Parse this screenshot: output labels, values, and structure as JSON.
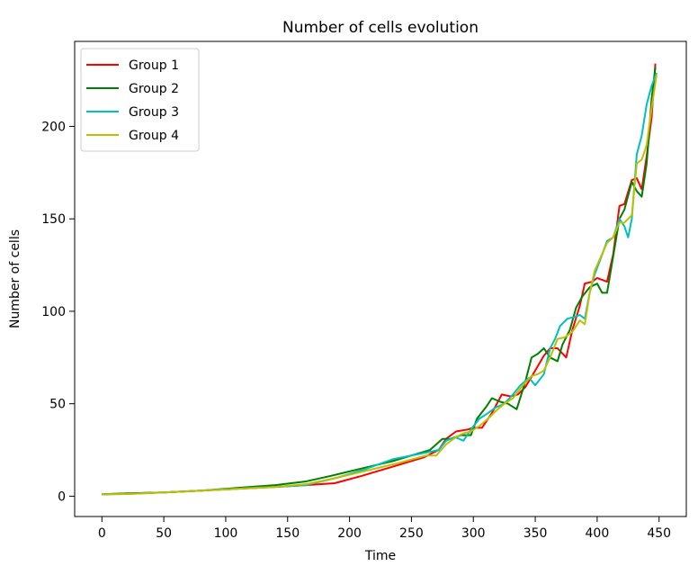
{
  "chart_data": {
    "type": "line",
    "title": "Number of cells evolution",
    "xlabel": "Time",
    "ylabel": "Number of cells",
    "xlim": [
      -22,
      472
    ],
    "ylim": [
      -11,
      246
    ],
    "xticks": [
      0,
      50,
      100,
      150,
      200,
      250,
      300,
      350,
      400,
      450
    ],
    "xtick_labels": [
      "0",
      "50",
      "100",
      "150",
      "200",
      "250",
      "300",
      "350",
      "400",
      "450"
    ],
    "yticks": [
      0,
      50,
      100,
      150,
      200
    ],
    "ytick_labels": [
      "0",
      "50",
      "100",
      "150",
      "200"
    ],
    "grid": false,
    "legend_position": "top-left",
    "series": [
      {
        "name": "Group 1",
        "color": "#ff0000",
        "points": [
          [
            0,
            1
          ],
          [
            20,
            1.5
          ],
          [
            50,
            2
          ],
          [
            80,
            3
          ],
          [
            110,
            4
          ],
          [
            140,
            5
          ],
          [
            165,
            6
          ],
          [
            188,
            7
          ],
          [
            210,
            11
          ],
          [
            235,
            16
          ],
          [
            260,
            21
          ],
          [
            272,
            25
          ],
          [
            278,
            31
          ],
          [
            286,
            35
          ],
          [
            295,
            36
          ],
          [
            300,
            37
          ],
          [
            307,
            37
          ],
          [
            315,
            45
          ],
          [
            323,
            55
          ],
          [
            330,
            54
          ],
          [
            336,
            55
          ],
          [
            342,
            59
          ],
          [
            350,
            68
          ],
          [
            357,
            76
          ],
          [
            362,
            80
          ],
          [
            368,
            80
          ],
          [
            375,
            75
          ],
          [
            380,
            90
          ],
          [
            386,
            103
          ],
          [
            390,
            115
          ],
          [
            396,
            116
          ],
          [
            400,
            118
          ],
          [
            408,
            116
          ],
          [
            413,
            131
          ],
          [
            418,
            157
          ],
          [
            422,
            158
          ],
          [
            428,
            171
          ],
          [
            432,
            172
          ],
          [
            436,
            166
          ],
          [
            440,
            184
          ],
          [
            444,
            205
          ],
          [
            447,
            234
          ]
        ]
      },
      {
        "name": "Group 2",
        "color": "#008000",
        "points": [
          [
            0,
            1
          ],
          [
            20,
            1.5
          ],
          [
            50,
            2
          ],
          [
            80,
            3
          ],
          [
            110,
            4.5
          ],
          [
            140,
            6
          ],
          [
            165,
            8
          ],
          [
            185,
            11
          ],
          [
            210,
            15
          ],
          [
            235,
            19
          ],
          [
            265,
            25
          ],
          [
            270,
            28
          ],
          [
            275,
            31
          ],
          [
            282,
            31
          ],
          [
            290,
            33
          ],
          [
            298,
            33
          ],
          [
            303,
            42
          ],
          [
            310,
            48
          ],
          [
            315,
            53
          ],
          [
            322,
            51
          ],
          [
            328,
            50
          ],
          [
            335,
            47
          ],
          [
            342,
            62
          ],
          [
            347,
            75
          ],
          [
            352,
            77
          ],
          [
            357,
            80
          ],
          [
            362,
            75
          ],
          [
            368,
            73
          ],
          [
            372,
            82
          ],
          [
            378,
            90
          ],
          [
            383,
            102
          ],
          [
            388,
            108
          ],
          [
            394,
            113
          ],
          [
            400,
            115
          ],
          [
            404,
            110
          ],
          [
            408,
            110
          ],
          [
            413,
            130
          ],
          [
            418,
            150
          ],
          [
            422,
            155
          ],
          [
            428,
            170
          ],
          [
            432,
            165
          ],
          [
            436,
            162
          ],
          [
            440,
            180
          ],
          [
            444,
            215
          ],
          [
            447,
            232
          ]
        ]
      },
      {
        "name": "Group 3",
        "color": "#00bfbf",
        "points": [
          [
            0,
            1
          ],
          [
            20,
            1.2
          ],
          [
            50,
            2
          ],
          [
            80,
            3
          ],
          [
            110,
            4
          ],
          [
            140,
            5
          ],
          [
            165,
            6
          ],
          [
            190,
            10
          ],
          [
            210,
            14
          ],
          [
            235,
            20
          ],
          [
            265,
            24
          ],
          [
            272,
            25
          ],
          [
            278,
            30
          ],
          [
            285,
            32
          ],
          [
            292,
            30
          ],
          [
            298,
            36
          ],
          [
            305,
            42
          ],
          [
            312,
            45
          ],
          [
            318,
            48
          ],
          [
            325,
            50
          ],
          [
            332,
            55
          ],
          [
            338,
            60
          ],
          [
            345,
            64
          ],
          [
            350,
            60
          ],
          [
            357,
            66
          ],
          [
            362,
            80
          ],
          [
            366,
            85
          ],
          [
            370,
            92
          ],
          [
            376,
            96
          ],
          [
            382,
            97
          ],
          [
            386,
            98
          ],
          [
            390,
            96
          ],
          [
            394,
            110
          ],
          [
            398,
            120
          ],
          [
            402,
            127
          ],
          [
            408,
            138
          ],
          [
            413,
            140
          ],
          [
            418,
            150
          ],
          [
            422,
            146
          ],
          [
            425,
            140
          ],
          [
            428,
            150
          ],
          [
            432,
            185
          ],
          [
            436,
            195
          ],
          [
            440,
            212
          ],
          [
            444,
            222
          ],
          [
            448,
            229
          ]
        ]
      },
      {
        "name": "Group 4",
        "color": "#bfbf00",
        "points": [
          [
            0,
            1
          ],
          [
            20,
            1.2
          ],
          [
            50,
            2
          ],
          [
            80,
            3
          ],
          [
            110,
            4
          ],
          [
            140,
            5
          ],
          [
            165,
            6.5
          ],
          [
            190,
            10
          ],
          [
            215,
            14
          ],
          [
            240,
            18
          ],
          [
            262,
            22
          ],
          [
            270,
            22
          ],
          [
            278,
            28
          ],
          [
            286,
            32
          ],
          [
            292,
            34
          ],
          [
            298,
            35
          ],
          [
            305,
            38
          ],
          [
            312,
            42
          ],
          [
            318,
            46
          ],
          [
            325,
            50
          ],
          [
            332,
            53
          ],
          [
            340,
            60
          ],
          [
            347,
            65
          ],
          [
            352,
            66
          ],
          [
            357,
            68
          ],
          [
            362,
            75
          ],
          [
            368,
            85
          ],
          [
            374,
            86
          ],
          [
            380,
            89
          ],
          [
            386,
            95
          ],
          [
            390,
            93
          ],
          [
            394,
            110
          ],
          [
            398,
            122
          ],
          [
            402,
            128
          ],
          [
            408,
            137
          ],
          [
            413,
            140
          ],
          [
            418,
            148
          ],
          [
            422,
            148
          ],
          [
            428,
            152
          ],
          [
            432,
            180
          ],
          [
            436,
            182
          ],
          [
            440,
            190
          ],
          [
            444,
            210
          ],
          [
            448,
            228
          ]
        ]
      }
    ]
  }
}
